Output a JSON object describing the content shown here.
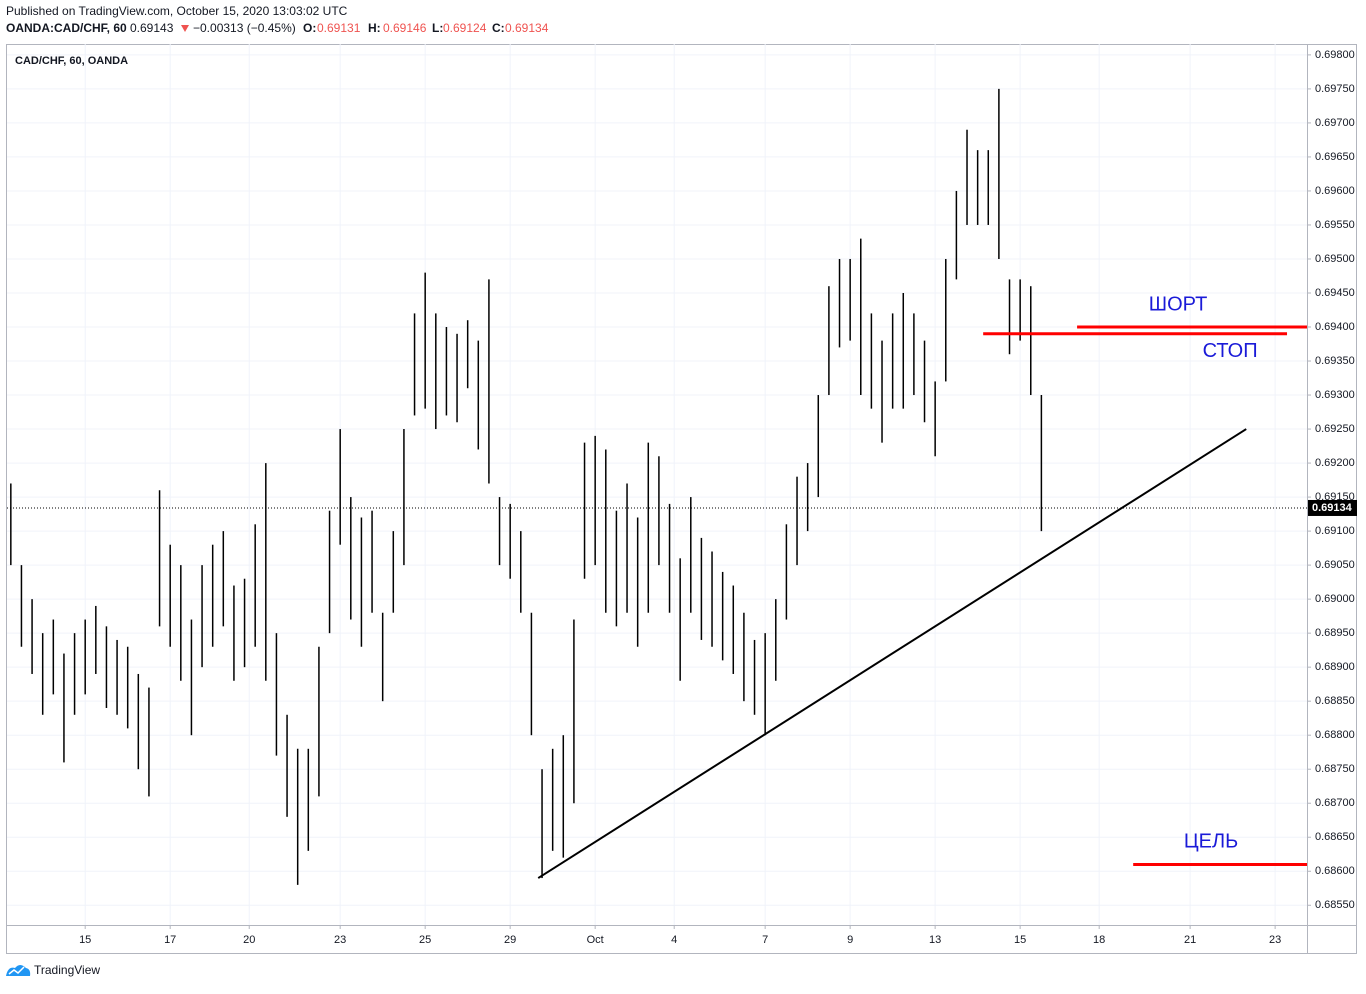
{
  "header": {
    "published": "Published on TradingView.com, October 15, 2020 13:03:02 UTC",
    "symbol": "OANDA:CAD/CHF, 60",
    "price": 0.69143,
    "change": "−0.00313 (−0.45%)",
    "o_label": "O:",
    "open": 0.69131,
    "h_label": "H:",
    "high": 0.69146,
    "l_label": "L:",
    "low": 0.69124,
    "c_label": "C:",
    "close": 0.69134
  },
  "chart_data": {
    "type": "ohlc",
    "title": "CAD/CHF, 60, OANDA",
    "color": "#000000",
    "grid": true,
    "xlim": [
      -1.84,
      28.75
    ],
    "ylim": [
      0.68521,
      0.69816
    ],
    "xticks": [
      {
        "value": 0,
        "label": "15"
      },
      {
        "value": 2,
        "label": "17"
      },
      {
        "value": 3.86,
        "label": "20"
      },
      {
        "value": 6,
        "label": "23"
      },
      {
        "value": 8,
        "label": "25"
      },
      {
        "value": 10,
        "label": "29"
      },
      {
        "value": 12,
        "label": "Oct"
      },
      {
        "value": 13.86,
        "label": "4"
      },
      {
        "value": 16,
        "label": "7"
      },
      {
        "value": 18,
        "label": "9"
      },
      {
        "value": 20,
        "label": "13"
      },
      {
        "value": 22,
        "label": "15"
      },
      {
        "value": 23.86,
        "label": "18"
      },
      {
        "value": 26,
        "label": "21"
      },
      {
        "value": 28,
        "label": "23"
      }
    ],
    "yticks": [
      {
        "value": 0.6855,
        "label": "0.68550"
      },
      {
        "value": 0.686,
        "label": "0.68600"
      },
      {
        "value": 0.6865,
        "label": "0.68650"
      },
      {
        "value": 0.687,
        "label": "0.68700"
      },
      {
        "value": 0.6875,
        "label": "0.68750"
      },
      {
        "value": 0.688,
        "label": "0.68800"
      },
      {
        "value": 0.6885,
        "label": "0.68850"
      },
      {
        "value": 0.689,
        "label": "0.68900"
      },
      {
        "value": 0.6895,
        "label": "0.68950"
      },
      {
        "value": 0.69,
        "label": "0.69000"
      },
      {
        "value": 0.6905,
        "label": "0.69050"
      },
      {
        "value": 0.691,
        "label": "0.69100"
      },
      {
        "value": 0.6915,
        "label": "0.69150"
      },
      {
        "value": 0.692,
        "label": "0.69200"
      },
      {
        "value": 0.6925,
        "label": "0.69250"
      },
      {
        "value": 0.693,
        "label": "0.69300"
      },
      {
        "value": 0.6935,
        "label": "0.69350"
      },
      {
        "value": 0.694,
        "label": "0.69400"
      },
      {
        "value": 0.6945,
        "label": "0.69450"
      },
      {
        "value": 0.695,
        "label": "0.69500"
      },
      {
        "value": 0.6955,
        "label": "0.69550"
      },
      {
        "value": 0.696,
        "label": "0.69600"
      },
      {
        "value": 0.6965,
        "label": "0.69650"
      },
      {
        "value": 0.697,
        "label": "0.69700"
      },
      {
        "value": 0.6975,
        "label": "0.69750"
      },
      {
        "value": 0.698,
        "label": "0.69800"
      }
    ],
    "x": [
      -1.75,
      -1.5,
      -1.25,
      -1,
      -0.75,
      -0.5,
      -0.25,
      0,
      0.25,
      0.5,
      0.75,
      1,
      1.25,
      1.5,
      1.75,
      2,
      2.25,
      2.5,
      2.75,
      3,
      3.25,
      3.5,
      3.75,
      4,
      4.25,
      4.5,
      4.75,
      5,
      5.25,
      5.5,
      5.75,
      6,
      6.25,
      6.5,
      6.75,
      7,
      7.25,
      7.5,
      7.75,
      8,
      8.25,
      8.5,
      8.75,
      9,
      9.25,
      9.5,
      9.75,
      10,
      10.25,
      10.5,
      10.75,
      11,
      11.25,
      11.5,
      11.75,
      12,
      12.25,
      12.5,
      12.75,
      13,
      13.25,
      13.5,
      13.75,
      14,
      14.25,
      14.5,
      14.75,
      15,
      15.25,
      15.5,
      15.75,
      16,
      16.25,
      16.5,
      16.75,
      17,
      17.25,
      17.5,
      17.75,
      18,
      18.25,
      18.5,
      18.75,
      19,
      19.25,
      19.5,
      19.75,
      20,
      20.25,
      20.5,
      20.75,
      21,
      21.25,
      21.5,
      21.75,
      22,
      22.25,
      22.5
    ],
    "high": [
      0.6917,
      0.6905,
      0.69,
      0.6895,
      0.6897,
      0.6892,
      0.6895,
      0.6897,
      0.6899,
      0.6896,
      0.6894,
      0.6893,
      0.6889,
      0.6887,
      0.6916,
      0.6908,
      0.6905,
      0.6897,
      0.6905,
      0.6908,
      0.691,
      0.6902,
      0.6903,
      0.6911,
      0.692,
      0.6895,
      0.6883,
      0.6878,
      0.6878,
      0.6893,
      0.6913,
      0.6925,
      0.6915,
      0.6912,
      0.6913,
      0.6898,
      0.691,
      0.6925,
      0.6942,
      0.6948,
      0.6942,
      0.694,
      0.6939,
      0.6941,
      0.6938,
      0.6947,
      0.6915,
      0.6914,
      0.691,
      0.6898,
      0.6875,
      0.6878,
      0.688,
      0.6897,
      0.6923,
      0.6924,
      0.6922,
      0.6913,
      0.6917,
      0.6912,
      0.6923,
      0.6921,
      0.6914,
      0.6906,
      0.6915,
      0.6909,
      0.6907,
      0.6904,
      0.6902,
      0.6898,
      0.6894,
      0.6895,
      0.69,
      0.6911,
      0.6918,
      0.692,
      0.693,
      0.6946,
      0.695,
      0.695,
      0.6953,
      0.6942,
      0.6938,
      0.6942,
      0.6945,
      0.6942,
      0.6938,
      0.6932,
      0.695,
      0.696,
      0.6969,
      0.6966,
      0.6966,
      0.6975,
      0.6947,
      0.6947,
      0.6946,
      0.693
    ],
    "low": [
      0.6905,
      0.6893,
      0.6889,
      0.6883,
      0.6886,
      0.6876,
      0.6883,
      0.6886,
      0.6889,
      0.6884,
      0.6883,
      0.6881,
      0.6875,
      0.6871,
      0.6896,
      0.6893,
      0.6888,
      0.688,
      0.689,
      0.6893,
      0.6896,
      0.6888,
      0.689,
      0.6893,
      0.6888,
      0.6877,
      0.6868,
      0.6858,
      0.6863,
      0.6871,
      0.6895,
      0.6908,
      0.6897,
      0.6893,
      0.6898,
      0.6885,
      0.6898,
      0.6905,
      0.6927,
      0.6928,
      0.6925,
      0.6927,
      0.6926,
      0.6931,
      0.6922,
      0.6917,
      0.6905,
      0.6903,
      0.6898,
      0.688,
      0.6859,
      0.6863,
      0.6862,
      0.687,
      0.6903,
      0.6905,
      0.6898,
      0.6896,
      0.6898,
      0.6893,
      0.6898,
      0.6905,
      0.6898,
      0.6888,
      0.6898,
      0.6894,
      0.6893,
      0.6891,
      0.6889,
      0.6885,
      0.6883,
      0.688,
      0.6888,
      0.6897,
      0.6905,
      0.691,
      0.6915,
      0.693,
      0.6937,
      0.6938,
      0.693,
      0.6928,
      0.6923,
      0.6928,
      0.6928,
      0.693,
      0.6926,
      0.6921,
      0.6932,
      0.6947,
      0.6955,
      0.6955,
      0.6955,
      0.695,
      0.6936,
      0.6938,
      0.693,
      0.691
    ],
    "last_price": 0.69134,
    "trendline": {
      "x": [
        10.66,
        27.32
      ],
      "y": [
        0.6859,
        0.6925
      ],
      "color": "#000000"
    },
    "annotations": [
      {
        "text": "ШОРТ",
        "x": [
          23.34,
          28.75
        ],
        "y": 0.694,
        "color": "#ff0000"
      },
      {
        "text": "СТОП",
        "x": [
          21.13,
          28.28
        ],
        "y": 0.6939,
        "color": "#ff0000"
      },
      {
        "text": "ЦЕЛЬ",
        "x": [
          24.66,
          28.75
        ],
        "y": 0.6861,
        "color": "#ff0000"
      }
    ],
    "footer": "TradingView"
  }
}
